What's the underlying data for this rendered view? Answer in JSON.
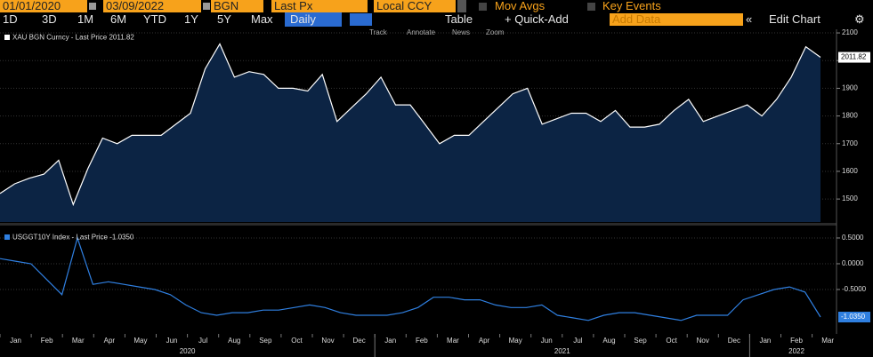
{
  "toolbar": {
    "start_date": "01/01/2020",
    "end_date": "03/09/2022",
    "source": "BGN",
    "field": "Last Px",
    "currency": "Local CCY",
    "mov_avgs": "Mov Avgs",
    "key_events": "Key Events",
    "ranges": [
      "1D",
      "3D",
      "1M",
      "6M",
      "YTD",
      "1Y",
      "5Y",
      "Max"
    ],
    "frequency": "Daily",
    "table": "Table",
    "quick_add": "+ Quick-Add",
    "add_data": "Add Data",
    "edit_chart": "Edit Chart",
    "tools": [
      "Track",
      "Annotate",
      "News",
      "Zoom"
    ]
  },
  "x_axis": {
    "months": [
      "Jan",
      "Feb",
      "Mar",
      "Apr",
      "May",
      "Jun",
      "Jul",
      "Aug",
      "Sep",
      "Oct",
      "Nov",
      "Dec",
      "Jan",
      "Feb",
      "Mar",
      "Apr",
      "May",
      "Jun",
      "Jul",
      "Aug",
      "Sep",
      "Oct",
      "Nov",
      "Dec",
      "Jan",
      "Feb",
      "Mar"
    ],
    "years": [
      "2020",
      "2021",
      "2022"
    ]
  },
  "chart_data": [
    {
      "type": "area",
      "series": [
        {
          "name": "XAU BGN Curncy - Last Price 2011.82",
          "color": "#ffffff",
          "fill": "#0c2444",
          "values": [
            1520,
            1555,
            1575,
            1590,
            1640,
            1480,
            1610,
            1720,
            1700,
            1730,
            1730,
            1730,
            1770,
            1810,
            1970,
            2060,
            1940,
            1960,
            1950,
            1900,
            1900,
            1890,
            1950,
            1780,
            1830,
            1880,
            1940,
            1840,
            1840,
            1770,
            1700,
            1730,
            1730,
            1780,
            1830,
            1880,
            1900,
            1770,
            1790,
            1810,
            1810,
            1780,
            1820,
            1760,
            1760,
            1770,
            1820,
            1860,
            1780,
            1800,
            1820,
            1840,
            1800,
            1860,
            1940,
            2050,
            2011.82
          ]
        }
      ],
      "last_price_label": "2011.82",
      "ylim": [
        1417,
        2113
      ],
      "yticks": [
        1500,
        1600,
        1700,
        1800,
        1900,
        2000,
        2100
      ],
      "grid": true
    },
    {
      "type": "line",
      "series": [
        {
          "name": "USGGT10Y Index - Last Price -1.0350",
          "color": "#2f7fe0",
          "values": [
            0.1,
            0.05,
            0.0,
            -0.3,
            -0.6,
            0.5,
            -0.4,
            -0.35,
            -0.4,
            -0.45,
            -0.5,
            -0.6,
            -0.8,
            -0.95,
            -1.0,
            -0.95,
            -0.95,
            -0.9,
            -0.9,
            -0.85,
            -0.8,
            -0.85,
            -0.95,
            -1.0,
            -1.0,
            -1.0,
            -0.95,
            -0.85,
            -0.65,
            -0.65,
            -0.7,
            -0.7,
            -0.8,
            -0.85,
            -0.85,
            -0.8,
            -1.0,
            -1.05,
            -1.1,
            -1.0,
            -0.95,
            -0.95,
            -1.0,
            -1.05,
            -1.1,
            -1.0,
            -1.0,
            -1.0,
            -0.7,
            -0.6,
            -0.5,
            -0.45,
            -0.55,
            -1.035
          ]
        }
      ],
      "last_price_label": "-1.0350",
      "ylim": [
        -1.345,
        0.672
      ],
      "yticks": [
        {
          "value": 0.5,
          "label": "0.5000"
        },
        {
          "value": 0,
          "label": "0.0000"
        },
        {
          "value": -0.5,
          "label": "-0.5000"
        }
      ],
      "grid": true
    }
  ]
}
